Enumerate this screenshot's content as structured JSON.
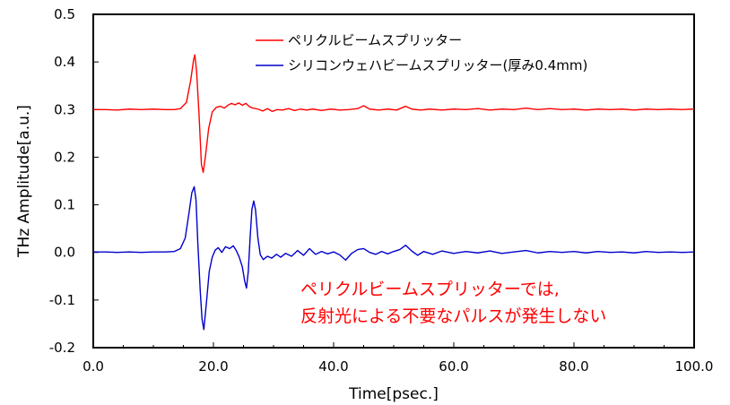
{
  "chart_data": {
    "type": "line",
    "title": "",
    "xlabel": "Time[psec.]",
    "ylabel": "THz Amplitude[a.u.]",
    "xlim": [
      0,
      100
    ],
    "ylim": [
      -0.2,
      0.5
    ],
    "x_ticks": [
      "0.0",
      "20.0",
      "40.0",
      "60.0",
      "80.0",
      "100.0"
    ],
    "y_ticks": [
      "-0.2",
      "-0.1",
      "0.0",
      "0.1",
      "0.2",
      "0.3",
      "0.4",
      "0.5"
    ],
    "grid": false,
    "legend": "top",
    "series": [
      {
        "name": "ペリクルビームスプリッター",
        "color": "#ff0000",
        "points": [
          [
            0,
            0.3
          ],
          [
            2,
            0.3
          ],
          [
            4,
            0.299
          ],
          [
            6,
            0.301
          ],
          [
            8,
            0.3
          ],
          [
            10,
            0.301
          ],
          [
            12,
            0.3
          ],
          [
            13.5,
            0.3
          ],
          [
            14.5,
            0.302
          ],
          [
            15.5,
            0.315
          ],
          [
            16.2,
            0.36
          ],
          [
            16.7,
            0.405
          ],
          [
            16.9,
            0.415
          ],
          [
            17.2,
            0.38
          ],
          [
            17.6,
            0.29
          ],
          [
            18.0,
            0.185
          ],
          [
            18.3,
            0.168
          ],
          [
            18.7,
            0.205
          ],
          [
            19.2,
            0.26
          ],
          [
            19.8,
            0.295
          ],
          [
            20.5,
            0.305
          ],
          [
            21.2,
            0.307
          ],
          [
            21.8,
            0.303
          ],
          [
            22.4,
            0.309
          ],
          [
            23.0,
            0.313
          ],
          [
            23.6,
            0.31
          ],
          [
            24.2,
            0.314
          ],
          [
            24.8,
            0.309
          ],
          [
            25.4,
            0.313
          ],
          [
            26.0,
            0.306
          ],
          [
            26.6,
            0.303
          ],
          [
            27.4,
            0.301
          ],
          [
            28.2,
            0.297
          ],
          [
            29.0,
            0.302
          ],
          [
            29.8,
            0.296
          ],
          [
            30.6,
            0.3
          ],
          [
            31.5,
            0.299
          ],
          [
            32.5,
            0.302
          ],
          [
            33.5,
            0.298
          ],
          [
            34.5,
            0.301
          ],
          [
            35.5,
            0.299
          ],
          [
            36.5,
            0.301
          ],
          [
            38,
            0.298
          ],
          [
            39.5,
            0.301
          ],
          [
            41,
            0.299
          ],
          [
            42.5,
            0.3
          ],
          [
            44,
            0.302
          ],
          [
            45,
            0.308
          ],
          [
            46,
            0.301
          ],
          [
            47.5,
            0.299
          ],
          [
            49,
            0.301
          ],
          [
            50.5,
            0.299
          ],
          [
            52,
            0.307
          ],
          [
            53,
            0.301
          ],
          [
            54.5,
            0.299
          ],
          [
            56,
            0.301
          ],
          [
            58,
            0.299
          ],
          [
            60,
            0.301
          ],
          [
            62,
            0.3
          ],
          [
            64,
            0.302
          ],
          [
            66,
            0.299
          ],
          [
            68,
            0.301
          ],
          [
            70,
            0.3
          ],
          [
            72,
            0.303
          ],
          [
            74,
            0.3
          ],
          [
            76,
            0.302
          ],
          [
            78,
            0.3
          ],
          [
            80,
            0.301
          ],
          [
            82,
            0.299
          ],
          [
            84,
            0.301
          ],
          [
            86,
            0.3
          ],
          [
            88,
            0.301
          ],
          [
            90,
            0.299
          ],
          [
            92,
            0.301
          ],
          [
            94,
            0.3
          ],
          [
            96,
            0.301
          ],
          [
            98,
            0.3
          ],
          [
            100,
            0.301
          ]
        ]
      },
      {
        "name": "シリコンウェハビームスプリッター(厚み0.4mm)",
        "color": "#0000cc",
        "points": [
          [
            0,
            0.001
          ],
          [
            2,
            0.001
          ],
          [
            4,
            0.0
          ],
          [
            6,
            0.001
          ],
          [
            8,
            0.0
          ],
          [
            10,
            0.001
          ],
          [
            12,
            0.001
          ],
          [
            13.5,
            0.002
          ],
          [
            14.5,
            0.008
          ],
          [
            15.3,
            0.03
          ],
          [
            15.9,
            0.08
          ],
          [
            16.4,
            0.125
          ],
          [
            16.8,
            0.138
          ],
          [
            17.1,
            0.11
          ],
          [
            17.4,
            0.02
          ],
          [
            17.8,
            -0.08
          ],
          [
            18.1,
            -0.14
          ],
          [
            18.4,
            -0.162
          ],
          [
            18.8,
            -0.11
          ],
          [
            19.3,
            -0.04
          ],
          [
            19.8,
            -0.01
          ],
          [
            20.3,
            0.005
          ],
          [
            20.8,
            0.01
          ],
          [
            21.4,
            0.0
          ],
          [
            22.0,
            0.012
          ],
          [
            22.7,
            0.008
          ],
          [
            23.3,
            0.014
          ],
          [
            23.8,
            0.004
          ],
          [
            24.3,
            -0.01
          ],
          [
            24.8,
            -0.03
          ],
          [
            25.2,
            -0.06
          ],
          [
            25.5,
            -0.075
          ],
          [
            25.8,
            -0.04
          ],
          [
            26.1,
            0.03
          ],
          [
            26.4,
            0.09
          ],
          [
            26.7,
            0.108
          ],
          [
            27.0,
            0.09
          ],
          [
            27.4,
            0.03
          ],
          [
            27.8,
            -0.005
          ],
          [
            28.3,
            -0.015
          ],
          [
            29.0,
            -0.008
          ],
          [
            29.7,
            -0.012
          ],
          [
            30.5,
            -0.004
          ],
          [
            31.2,
            -0.01
          ],
          [
            32.0,
            -0.002
          ],
          [
            33.0,
            -0.008
          ],
          [
            34.0,
            0.004
          ],
          [
            35.0,
            -0.006
          ],
          [
            36.0,
            0.008
          ],
          [
            37.0,
            -0.004
          ],
          [
            38.0,
            0.002
          ],
          [
            39.0,
            -0.003
          ],
          [
            40.0,
            0.001
          ],
          [
            41.0,
            -0.005
          ],
          [
            42.0,
            -0.016
          ],
          [
            43.0,
            -0.002
          ],
          [
            44.0,
            0.006
          ],
          [
            45.0,
            0.008
          ],
          [
            46.0,
            0.0
          ],
          [
            47.0,
            -0.004
          ],
          [
            48.0,
            0.002
          ],
          [
            49.0,
            -0.003
          ],
          [
            50.0,
            0.002
          ],
          [
            51.0,
            0.006
          ],
          [
            52.0,
            0.015
          ],
          [
            53.0,
            0.003
          ],
          [
            54.0,
            -0.006
          ],
          [
            55.0,
            0.002
          ],
          [
            56.5,
            -0.004
          ],
          [
            58.0,
            0.003
          ],
          [
            60.0,
            -0.002
          ],
          [
            62.0,
            0.002
          ],
          [
            64.0,
            -0.001
          ],
          [
            66.0,
            0.003
          ],
          [
            68.0,
            -0.002
          ],
          [
            70.0,
            0.001
          ],
          [
            72.0,
            0.004
          ],
          [
            74.0,
            -0.001
          ],
          [
            76.0,
            0.002
          ],
          [
            78.0,
            0.0
          ],
          [
            80.0,
            0.002
          ],
          [
            82.0,
            -0.001
          ],
          [
            84.0,
            0.002
          ],
          [
            86.0,
            0.0
          ],
          [
            88.0,
            0.001
          ],
          [
            90.0,
            -0.001
          ],
          [
            92.0,
            0.002
          ],
          [
            94.0,
            0.0
          ],
          [
            96.0,
            0.001
          ],
          [
            98.0,
            0.0
          ],
          [
            100.0,
            0.001
          ]
        ]
      }
    ],
    "annotation": {
      "lines": [
        "ペリクルビームスプリッターでは,",
        "反射光による不要なパルスが発生しない"
      ],
      "color": "#ff0000"
    }
  }
}
